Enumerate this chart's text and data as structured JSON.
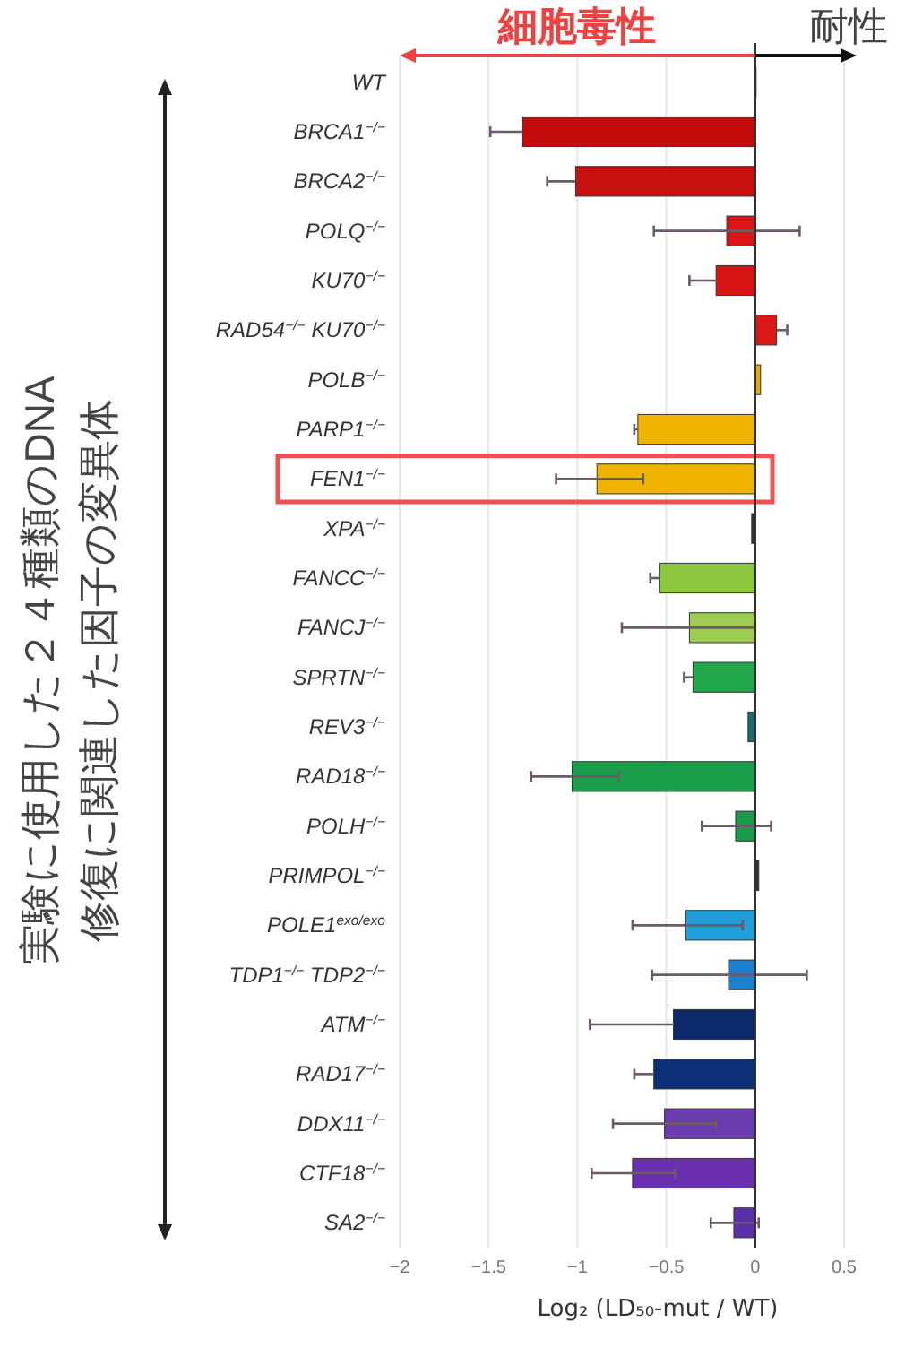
{
  "chart_data": {
    "type": "bar",
    "orientation": "horizontal",
    "categories": [
      "WT",
      "BRCA1$^{−/−}$",
      "BRCA2$^{−/−}$",
      "POLQ$^{−/−}$",
      "KU70$^{−/−}$",
      "RAD54$^{−/−}$ KU70$^{−/−}$",
      "POLB$^{−/−}$",
      "PARP1$^{−/−}$",
      "FEN1$^{−/−}$",
      "XPA$^{−/−}$",
      "FANCC$^{−/−}$",
      "FANCJ$^{−/−}$",
      "SPRTN$^{−/−}$",
      "REV3$^{−/−}$",
      "RAD18$^{−/−}$",
      "POLH$^{−/−}$",
      "PRIMPOL$^{−/−}$",
      "POLE1$^{exo/exo}$",
      "TDP1$^{−/−}$ TDP2$^{−/−}$",
      "ATM$^{−/−}$",
      "RAD17$^{−/−}$",
      "DDX11$^{−/−}$",
      "CTF18$^{−/−}$",
      "SA2$^{−/−}$"
    ],
    "values": [
      0,
      -1.31,
      -1.01,
      -0.16,
      -0.22,
      0.12,
      0.03,
      -0.66,
      -0.89,
      -0.02,
      -0.54,
      -0.37,
      -0.35,
      -0.04,
      -1.03,
      -0.11,
      0.02,
      -0.39,
      -0.15,
      -0.46,
      -0.57,
      -0.51,
      -0.69,
      -0.12
    ],
    "errors": [
      null,
      [
        -1.49,
        -1.31
      ],
      [
        -1.17,
        -1.01
      ],
      [
        -0.57,
        0.25
      ],
      [
        -0.37,
        -0.22
      ],
      [
        0.12,
        0.18
      ],
      null,
      [
        -0.68,
        -0.66
      ],
      [
        -1.12,
        -0.63
      ],
      null,
      [
        -0.59,
        -0.54
      ],
      [
        -0.75,
        0.0
      ],
      [
        -0.4,
        -0.35
      ],
      null,
      [
        -1.26,
        -0.77
      ],
      [
        -0.3,
        0.09
      ],
      null,
      [
        -0.69,
        -0.07
      ],
      [
        -0.58,
        0.29
      ],
      [
        -0.93,
        -0.46
      ],
      [
        -0.68,
        -0.57
      ],
      [
        -0.8,
        -0.22
      ],
      [
        -0.92,
        -0.45
      ],
      [
        -0.25,
        0.02
      ]
    ],
    "colors": [
      "#cccccc",
      "#c40c0c",
      "#c81010",
      "#dc1616",
      "#d81414",
      "#dc1818",
      "#e8a800",
      "#f0b400",
      "#f0b400",
      "#333333",
      "#8dc63f",
      "#9ccc50",
      "#22a84a",
      "#1a6e6a",
      "#1aa04a",
      "#1a9a4a",
      "#333333",
      "#1fa0dc",
      "#1f7fcc",
      "#0c2a6a",
      "#0c2f78",
      "#6a3cb0",
      "#6a30b0",
      "#5a30a8"
    ],
    "xlim": [
      -2,
      0.5
    ],
    "xticks": [
      -2,
      -1.5,
      -1,
      -0.5,
      0,
      0.5
    ],
    "grid": "x",
    "xlabel": "Log₂ (LD₅₀-mut / WT)",
    "ref_lines": [
      {
        "axis": "x",
        "value": 0,
        "color": "#333333"
      }
    ],
    "annotations": [
      "細胞毒性",
      "耐性",
      "実験に使用した２４種類のDNA",
      "修復に関連した因子の変異体"
    ]
  }
}
